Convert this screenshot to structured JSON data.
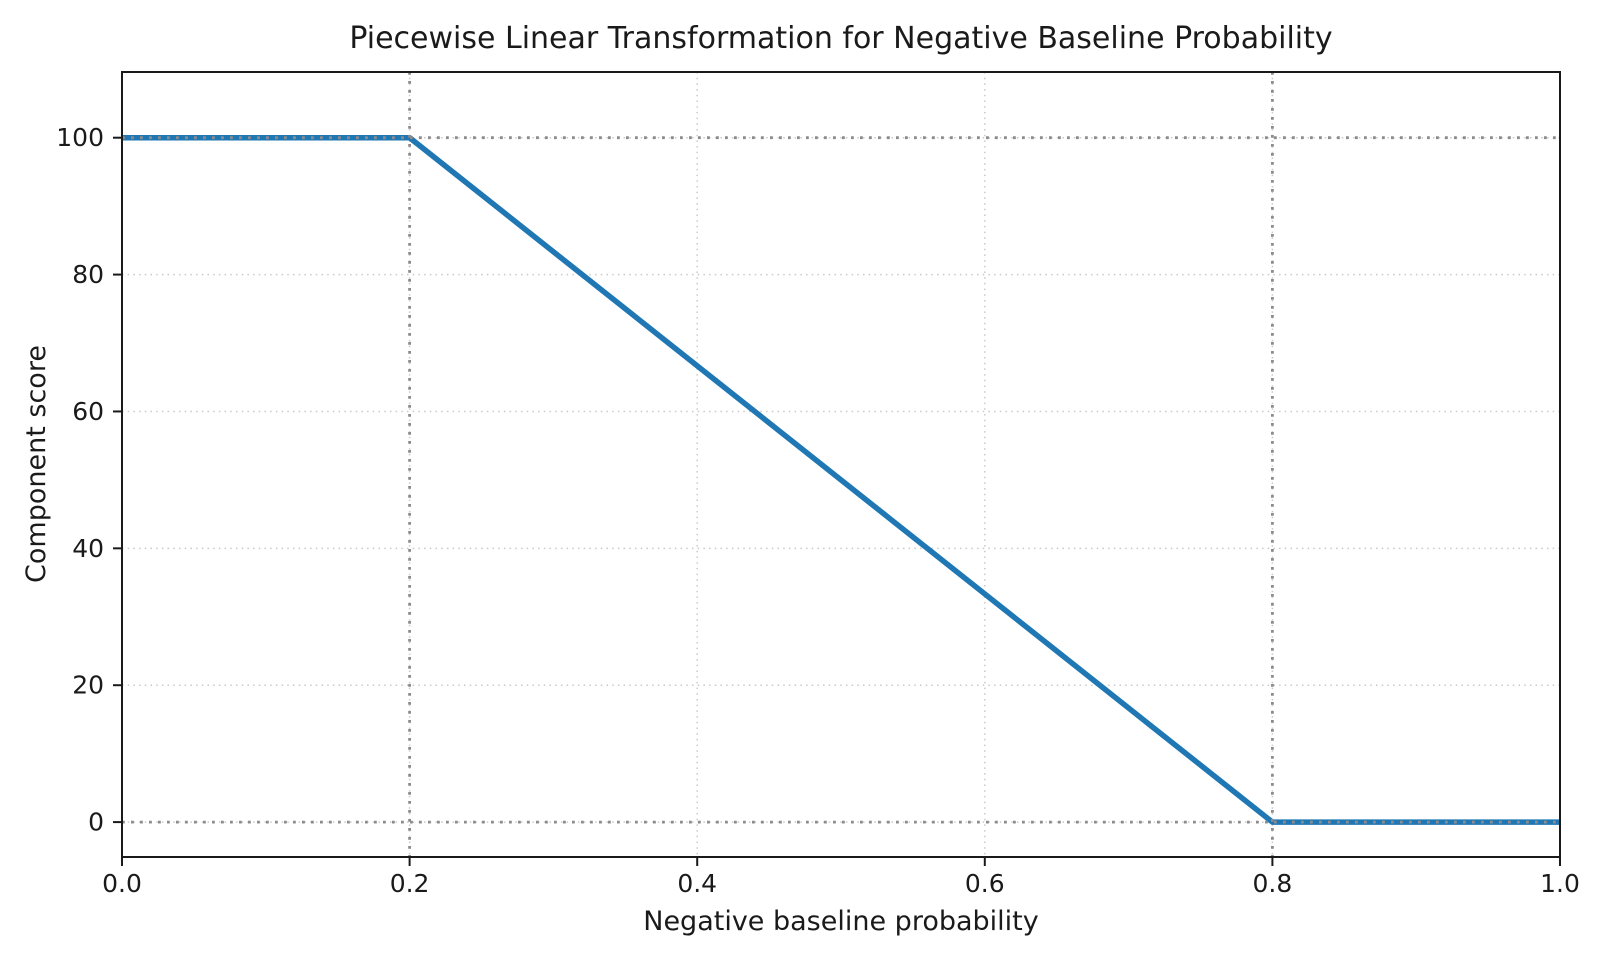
{
  "chart_data": {
    "type": "line",
    "title": "Piecewise Linear Transformation for Negative Baseline Probability",
    "xlabel": "Negative baseline probability",
    "ylabel": "Component score",
    "xlim": [
      0.0,
      1.0
    ],
    "ylim": [
      -5.1,
      109.6
    ],
    "x_ticks": [
      0.0,
      0.2,
      0.4,
      0.6,
      0.8,
      1.0
    ],
    "x_tick_labels": [
      "0.0",
      "0.2",
      "0.4",
      "0.6",
      "0.8",
      "1.0"
    ],
    "y_ticks": [
      0,
      20,
      40,
      60,
      80,
      100
    ],
    "y_tick_labels": [
      "0",
      "20",
      "40",
      "60",
      "80",
      "100"
    ],
    "series": [
      {
        "name": "component-score-line",
        "color": "#1f77b4",
        "points": [
          [
            0.0,
            100
          ],
          [
            0.2,
            100
          ],
          [
            0.8,
            0
          ],
          [
            1.0,
            0
          ]
        ]
      }
    ],
    "grid": {
      "show": true,
      "style": "dotted",
      "color": "#c9c9c9"
    },
    "reference_lines": {
      "style": "dotted",
      "color": "#8c8c8c",
      "vertical_x": [
        0.2,
        0.8
      ],
      "horizontal_y": [
        0,
        100
      ]
    },
    "background_color": "#ffffff",
    "spine_color": "#1a1a1a",
    "legend": "none"
  }
}
